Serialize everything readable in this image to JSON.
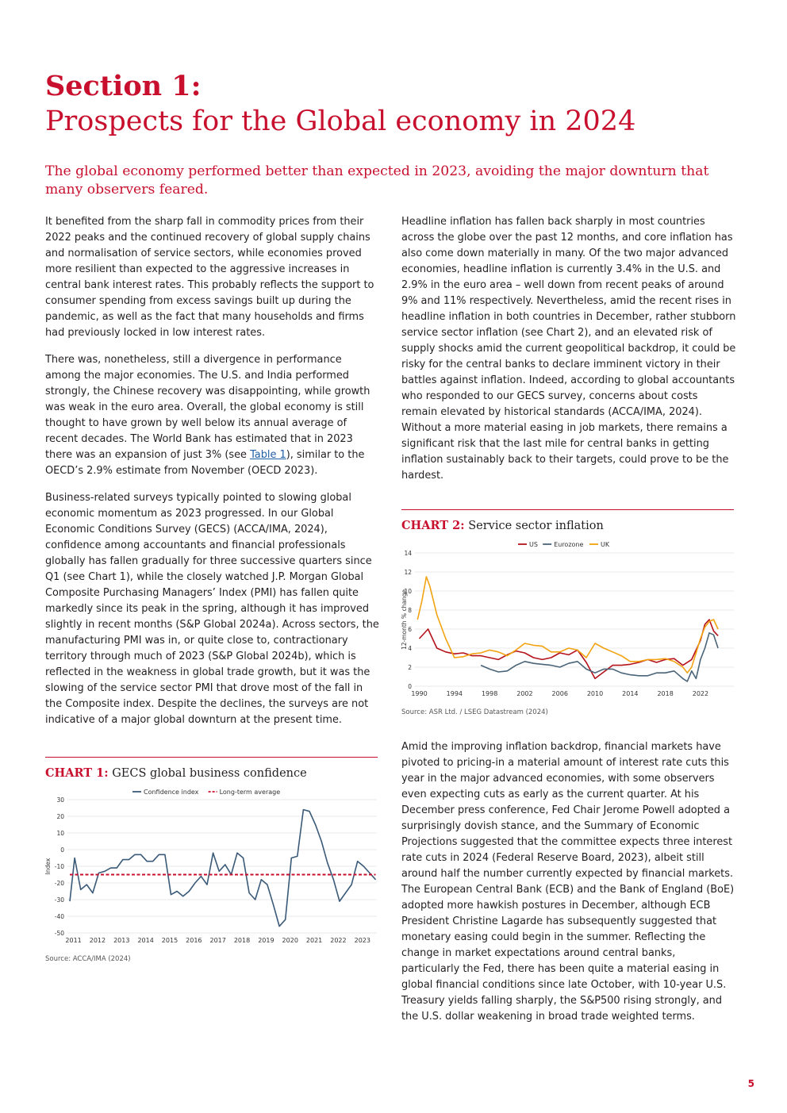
{
  "section": {
    "label": "Section 1:",
    "heading": "Prospects for the Global economy in 2024"
  },
  "lead": "The global economy performed better than expected in 2023, avoiding the major downturn that many observers feared.",
  "left_column": {
    "p1": "It benefited from the sharp fall in commodity prices from their 2022 peaks and the continued recovery of global supply chains and normalisation of service sectors, while economies proved more resilient than expected to the aggressive increases in central bank interest rates. This probably reflects the support to consumer spending from excess savings built up during the pandemic, as well as the fact that many households and firms had previously locked in low interest rates.",
    "p2_before": "There was, nonetheless, still a divergence in performance among the major economies. The U.S. and India performed strongly, the Chinese recovery was disappointing, while growth was weak in the euro area. Overall, the global economy is still thought to have grown by well below its annual average of recent decades. The World Bank has estimated that in 2023 there was an expansion of just 3% (see ",
    "p2_link": "Table 1",
    "p2_after": "), similar to the OECD’s 2.9% estimate from November (OECD 2023).",
    "p3": "Business-related surveys typically pointed to slowing global economic momentum as 2023 progressed. In our Global Economic Conditions Survey (GECS) (ACCA/IMA, 2024), confidence among accountants and financial professionals globally has fallen gradually for three successive quarters since Q1 (see Chart 1), while the closely watched J.P. Morgan Global Composite Purchasing Managers’ Index (PMI) has fallen quite markedly since its peak in the spring, although it has improved slightly in recent months (S&P Global 2024a). Across sectors, the manufacturing PMI was in, or quite close to, contractionary territory through much of 2023 (S&P Global 2024b), which is reflected in the weakness in global trade growth, but it was the slowing of the service sector PMI that drove most of the fall in the Composite index. Despite the declines, the surveys are not indicative of a major global downturn at the present time."
  },
  "right_column": {
    "p1": "Headline inflation has fallen back sharply in most countries across the globe over the past 12 months, and core inflation has also come down materially in many. Of the two major advanced economies, headline inflation is currently 3.4% in the U.S. and 2.9% in the euro area – well down from recent peaks of around 9% and 11% respectively. Nevertheless, amid the recent rises in headline inflation in both countries in December, rather stubborn service sector inflation (see Chart 2), and an elevated risk of supply shocks amid the current geopolitical backdrop, it could be risky for the central banks to declare imminent victory in their battles against inflation. Indeed, according to global accountants who responded to our GECS survey, concerns about costs remain elevated by historical standards (ACCA/IMA, 2024). Without a more material easing in job markets, there remains a significant risk that the last mile for central banks in getting inflation sustainably back to their targets, could prove to be the hardest.",
    "p2": "Amid the improving inflation backdrop, financial markets have pivoted to pricing-in a material amount of interest rate cuts this year in the major advanced economies, with some observers even expecting cuts as early as the current quarter. At his December press conference, Fed Chair Jerome Powell adopted a surprisingly dovish stance, and the Summary of Economic Projections suggested that the committee expects three interest rate cuts in 2024 (Federal Reserve Board, 2023), albeit still around half the number currently expected by financial markets. The European Central Bank (ECB) and the Bank of England (BoE) adopted more hawkish postures in December, although ECB President Christine Lagarde has subsequently suggested that monetary easing could begin in the summer. Reflecting the change in market expectations around central banks, particularly the Fed, there has been quite a material easing in global financial conditions since late October, with 10-year U.S. Treasury yields falling sharply, the S&P500 rising strongly, and the U.S. dollar weakening in broad trade weighted terms."
  },
  "chart1": {
    "label": "CHART 1:",
    "title": "GECS global business confidence",
    "source": "Source: ACCA/IMA (2024)"
  },
  "chart2": {
    "label": "CHART 2:",
    "title": "Service sector inflation",
    "source": "Source: ASR Ltd. / LSEG Datastream (2024)"
  },
  "page_number": "5",
  "colors": {
    "accent": "#c8102e",
    "confidence": "#3a5a78",
    "us": "#b5121b",
    "eurozone": "#4a6478",
    "uk": "#f2a312"
  },
  "chart_data": [
    {
      "type": "line",
      "id": "chart1",
      "ylabel": "Index",
      "ylim": [
        -50,
        30
      ],
      "yticks": [
        -50,
        -40,
        -30,
        -20,
        -10,
        0,
        10,
        20,
        30
      ],
      "xlim": [
        2010.75,
        2023.6
      ],
      "xticks": [
        2011,
        2012,
        2013,
        2014,
        2015,
        2016,
        2017,
        2018,
        2019,
        2020,
        2021,
        2022,
        2023
      ],
      "legend": "top",
      "series": [
        {
          "name": "Confidence index",
          "style": "solid",
          "x": [
            2010.85,
            2011.05,
            2011.3,
            2011.55,
            2011.8,
            2012.05,
            2012.3,
            2012.55,
            2012.8,
            2013.05,
            2013.3,
            2013.55,
            2013.8,
            2014.05,
            2014.3,
            2014.55,
            2014.8,
            2015.05,
            2015.3,
            2015.55,
            2015.8,
            2016.05,
            2016.3,
            2016.55,
            2016.8,
            2017.05,
            2017.3,
            2017.55,
            2017.8,
            2018.05,
            2018.3,
            2018.55,
            2018.8,
            2019.05,
            2019.3,
            2019.55,
            2019.8,
            2020.05,
            2020.3,
            2020.55,
            2020.8,
            2021.05,
            2021.3,
            2021.55,
            2021.8,
            2022.05,
            2022.3,
            2022.55,
            2022.8,
            2023.05,
            2023.3,
            2023.55
          ],
          "values": [
            -31,
            -5,
            -24,
            -21,
            -26,
            -14,
            -13,
            -11,
            -11,
            -6,
            -6,
            -3,
            -3,
            -7,
            -7,
            -3,
            -3,
            -27,
            -25,
            -28,
            -25,
            -20,
            -16,
            -21,
            -2,
            -13,
            -9,
            -15,
            -2,
            -5,
            -26,
            -30,
            -18,
            -21,
            -33,
            -46,
            -42,
            -5,
            -4,
            24,
            23,
            15,
            5,
            -8,
            -18,
            -31,
            -26,
            -21,
            -7,
            -10,
            -14,
            -18
          ]
        },
        {
          "name": "Long-term average",
          "style": "dashed",
          "x": [
            2010.85,
            2023.55
          ],
          "values": [
            -15,
            -15
          ]
        }
      ]
    },
    {
      "type": "line",
      "id": "chart2",
      "ylabel": "12-month % change",
      "ylim": [
        0,
        14
      ],
      "yticks": [
        0,
        2,
        4,
        6,
        8,
        10,
        12,
        14
      ],
      "xlim": [
        1989.5,
        2025.8
      ],
      "xticks": [
        1990,
        1994,
        1998,
        2002,
        2006,
        2010,
        2014,
        2018,
        2022
      ],
      "legend": "top",
      "series": [
        {
          "name": "US",
          "x": [
            1990,
            1991,
            1992,
            1993,
            1994,
            1995,
            1996,
            1997,
            1998,
            1999,
            2000,
            2001,
            2002,
            2003,
            2004,
            2005,
            2006,
            2007,
            2008,
            2009,
            2010,
            2011,
            2012,
            2013,
            2014,
            2015,
            2016,
            2017,
            2018,
            2019,
            2020,
            2021,
            2021.5,
            2022,
            2022.5,
            2023,
            2023.5,
            2024
          ],
          "values": [
            5.0,
            6.0,
            4.0,
            3.6,
            3.4,
            3.5,
            3.2,
            3.2,
            3.0,
            2.8,
            3.3,
            3.7,
            3.5,
            3.0,
            2.8,
            3.0,
            3.5,
            3.3,
            3.8,
            2.5,
            0.8,
            1.5,
            2.2,
            2.2,
            2.3,
            2.5,
            2.8,
            2.5,
            2.8,
            2.9,
            2.2,
            2.8,
            3.8,
            4.8,
            6.5,
            7.0,
            5.8,
            5.3
          ]
        },
        {
          "name": "Eurozone",
          "x": [
            1997,
            1998,
            1999,
            2000,
            2001,
            2002,
            2003,
            2004,
            2005,
            2006,
            2007,
            2008,
            2009,
            2010,
            2011,
            2012,
            2013,
            2014,
            2015,
            2016,
            2017,
            2018,
            2019,
            2020,
            2020.5,
            2021,
            2021.5,
            2022,
            2022.5,
            2023,
            2023.5,
            2024
          ],
          "values": [
            2.2,
            1.8,
            1.5,
            1.6,
            2.2,
            2.6,
            2.4,
            2.3,
            2.2,
            2.0,
            2.4,
            2.6,
            1.8,
            1.4,
            1.8,
            1.8,
            1.4,
            1.2,
            1.1,
            1.1,
            1.4,
            1.4,
            1.6,
            0.8,
            0.5,
            1.6,
            0.8,
            2.8,
            4.0,
            5.6,
            5.4,
            4.0
          ]
        },
        {
          "name": "UK",
          "x": [
            1989.8,
            1990.3,
            1990.8,
            1991.2,
            1991.6,
            1992,
            1993,
            1994,
            1995,
            1996,
            1997,
            1998,
            1999,
            2000,
            2001,
            2002,
            2003,
            2004,
            2005,
            2006,
            2007,
            2008,
            2009,
            2010,
            2011,
            2012,
            2013,
            2014,
            2015,
            2016,
            2017,
            2018,
            2019,
            2020,
            2020.5,
            2021,
            2021.5,
            2022,
            2022.5,
            2023,
            2023.5,
            2024
          ],
          "values": [
            7.0,
            9.0,
            11.5,
            10.5,
            9.0,
            7.5,
            5.0,
            3.0,
            3.1,
            3.4,
            3.5,
            3.8,
            3.6,
            3.2,
            3.8,
            4.5,
            4.3,
            4.2,
            3.6,
            3.6,
            4.0,
            3.8,
            3.0,
            4.5,
            4.0,
            3.6,
            3.2,
            2.6,
            2.6,
            2.8,
            2.8,
            2.9,
            2.6,
            2.0,
            1.4,
            2.0,
            3.5,
            5.0,
            6.2,
            6.8,
            7.0,
            6.0
          ]
        }
      ]
    }
  ]
}
